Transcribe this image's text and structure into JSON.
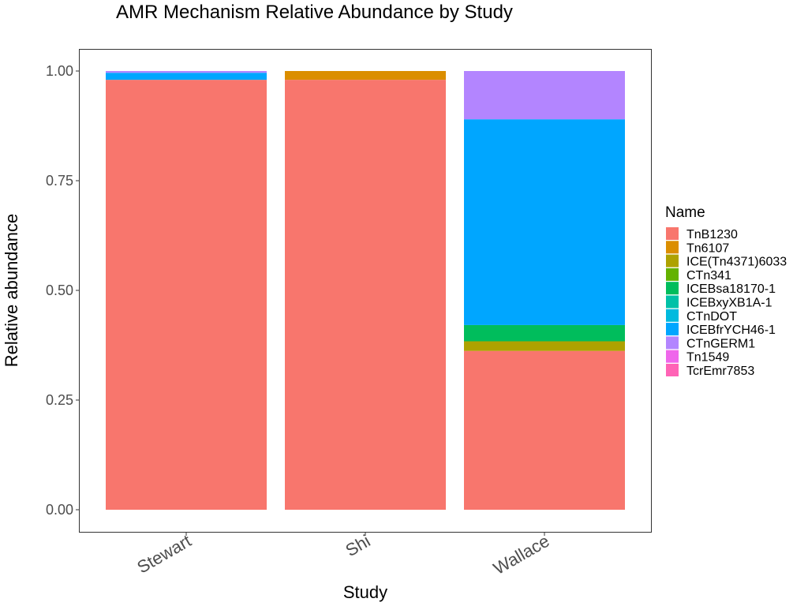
{
  "chart_data": {
    "type": "bar",
    "stacked": true,
    "title": "AMR Mechanism Relative Abundance by Study",
    "xlabel": "Study",
    "ylabel": "Relative abundance",
    "ylim": [
      0,
      1
    ],
    "yticks": [
      "0.00",
      "0.25",
      "0.50",
      "0.75",
      "1.00"
    ],
    "categories": [
      "Stewart",
      "Shi",
      "Wallace"
    ],
    "legend_title": "Name",
    "legend_position": "right",
    "grid": false,
    "series": [
      {
        "name": "TnB1230",
        "color": "#F8766D",
        "values": [
          0.98,
          0.98,
          0.362
        ]
      },
      {
        "name": "Tn6107",
        "color": "#DB8E00",
        "values": [
          0.0,
          0.02,
          0.0
        ]
      },
      {
        "name": "ICE(Tn4371)6033",
        "color": "#AEA200",
        "values": [
          0.0,
          0.0,
          0.022
        ]
      },
      {
        "name": "CTn341",
        "color": "#64B200",
        "values": [
          0.0,
          0.0,
          0.0
        ]
      },
      {
        "name": "ICEBsa18170-1",
        "color": "#00BD5C",
        "values": [
          0.0,
          0.0,
          0.037
        ]
      },
      {
        "name": "ICEBxyXB1A-1",
        "color": "#00C1A7",
        "values": [
          0.0,
          0.0,
          0.0
        ]
      },
      {
        "name": "CTnDOT",
        "color": "#00BADE",
        "values": [
          0.0,
          0.0,
          0.0
        ]
      },
      {
        "name": "ICEBfrYCH46-1",
        "color": "#00A6FF",
        "values": [
          0.016,
          0.0,
          0.469
        ]
      },
      {
        "name": "CTnGERM1",
        "color": "#B385FF",
        "values": [
          0.004,
          0.0,
          0.11
        ]
      },
      {
        "name": "Tn1549",
        "color": "#EF67EB",
        "values": [
          0.0,
          0.0,
          0.0
        ]
      },
      {
        "name": "TcrEmr7853",
        "color": "#FF63B6",
        "values": [
          0.0,
          0.0,
          0.0
        ]
      }
    ]
  }
}
